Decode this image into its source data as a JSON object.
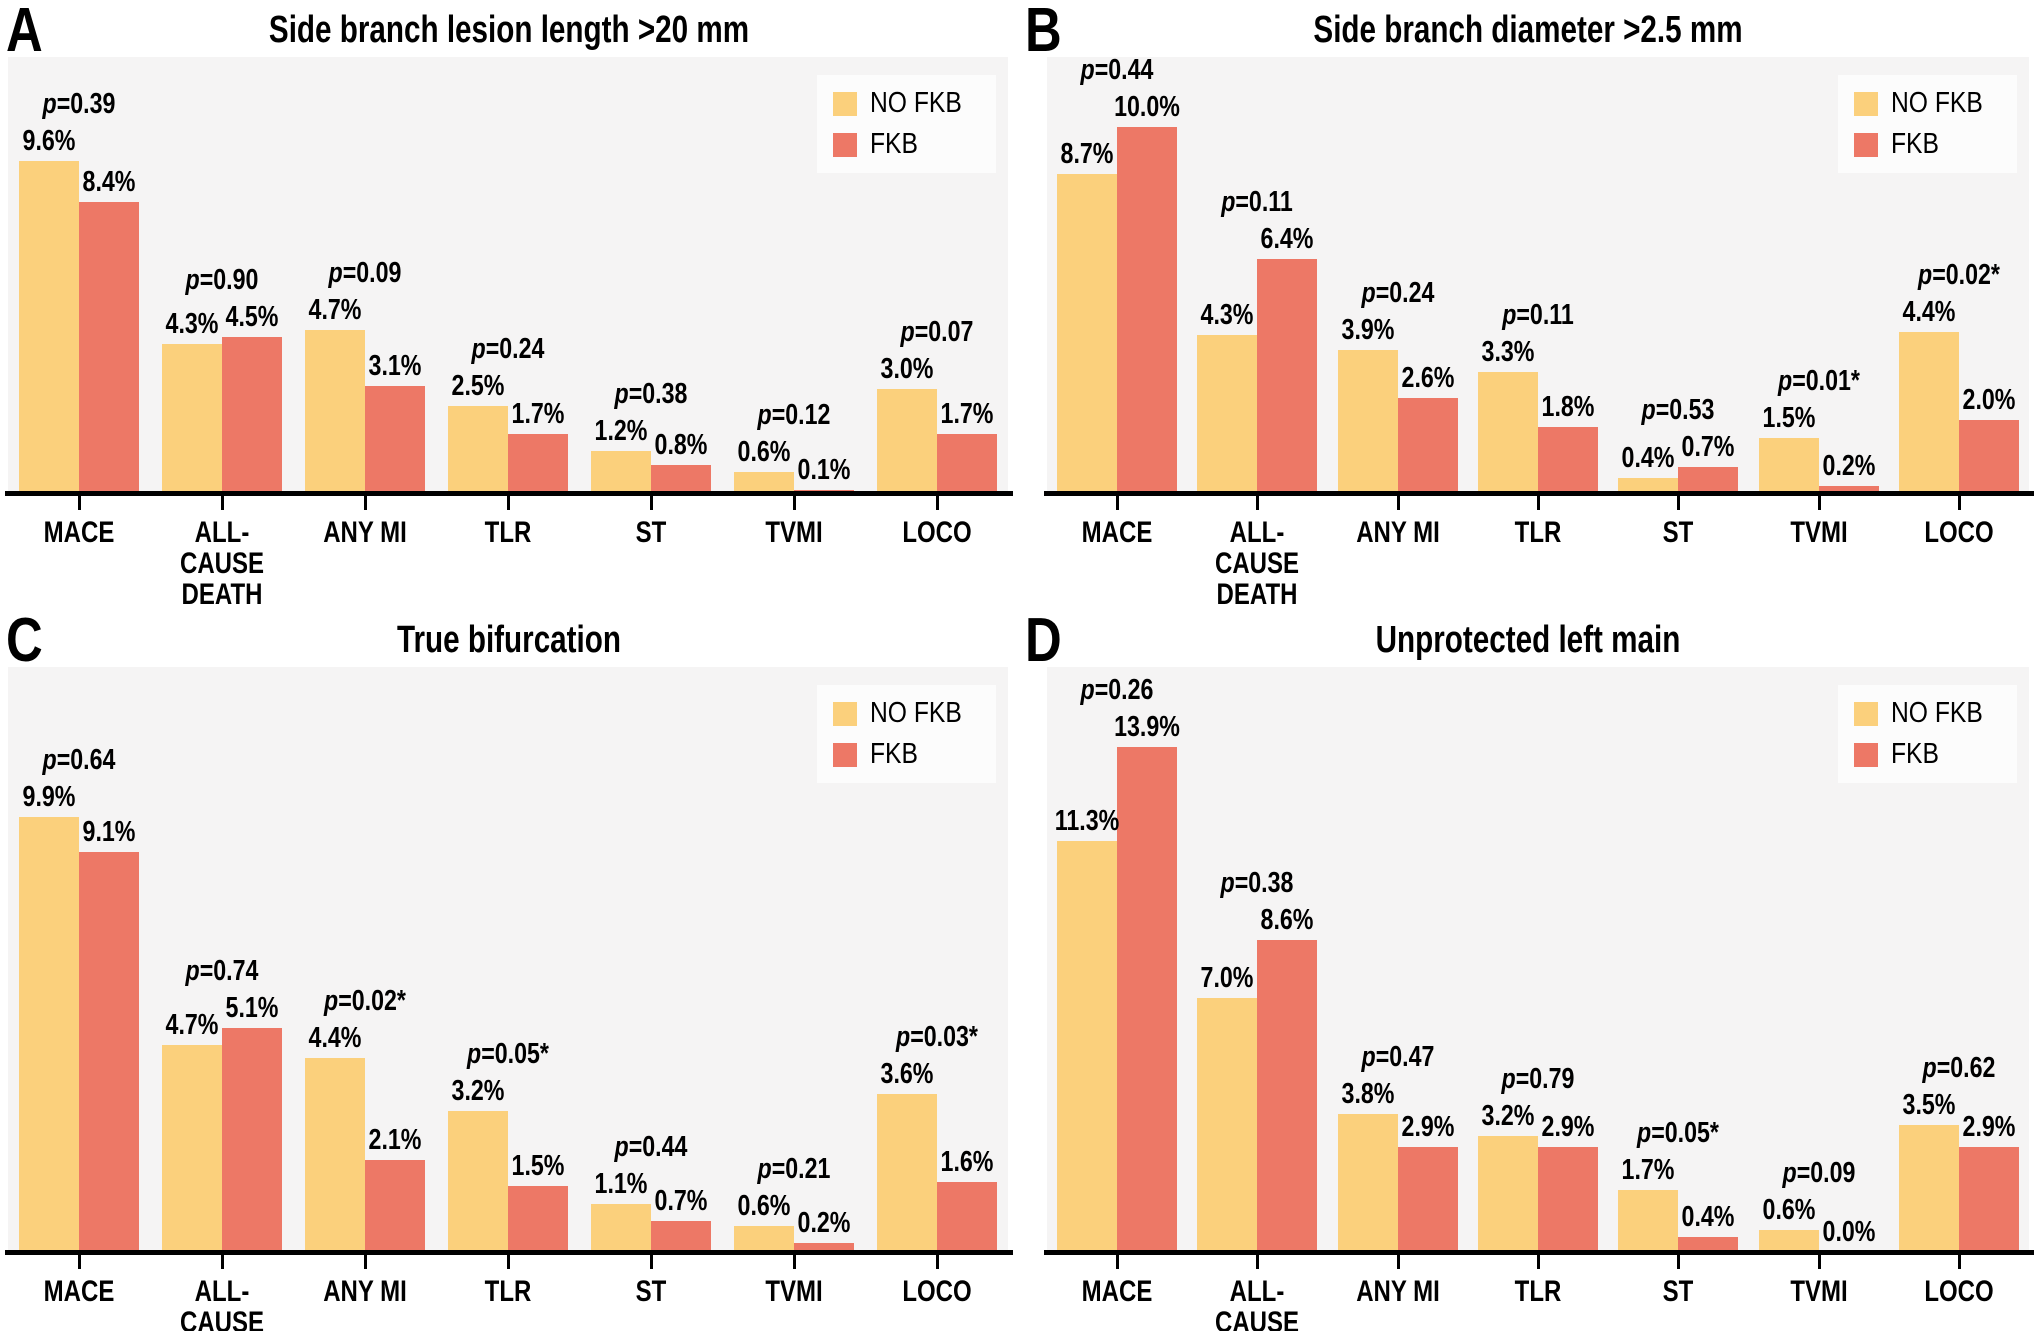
{
  "figure": {
    "legend": {
      "items": [
        {
          "label": "NO FKB",
          "color_key": "no_fkb"
        },
        {
          "label": "FKB",
          "color_key": "fkb"
        }
      ]
    }
  },
  "colors": {
    "no_fkb": "#FBD07C",
    "fkb": "#ED7866",
    "plot_bg": "#F5F4F4",
    "legend_bg": "#FCFCFC",
    "axis": "#000000",
    "text": "#000000",
    "page_bg": "#FFFFFF"
  },
  "chart_data": [
    {
      "panel": "A",
      "type": "bar",
      "title": "Side branch lesion length >20 mm",
      "categories": [
        "MACE",
        "ALL-CAUSE DEATH",
        "ANY MI",
        "TLR",
        "ST",
        "TVMI",
        "LOCO"
      ],
      "series": [
        {
          "name": "NO FKB",
          "values": [
            9.6,
            4.3,
            4.7,
            2.5,
            1.2,
            0.6,
            3.0
          ]
        },
        {
          "name": "FKB",
          "values": [
            8.4,
            4.5,
            3.1,
            1.7,
            0.8,
            0.1,
            1.7
          ]
        }
      ],
      "p_values": [
        "0.39",
        "0.90",
        "0.09",
        "0.24",
        "0.38",
        "0.12",
        "0.07"
      ],
      "value_suffix": "%",
      "ylim": [
        0,
        12.6
      ],
      "grid": false,
      "legend_position": "top-right"
    },
    {
      "panel": "B",
      "type": "bar",
      "title": "Side branch diameter >2.5 mm",
      "categories": [
        "MACE",
        "ALL-CAUSE DEATH",
        "ANY MI",
        "TLR",
        "ST",
        "TVMI",
        "LOCO"
      ],
      "series": [
        {
          "name": "NO FKB",
          "values": [
            8.7,
            4.3,
            3.9,
            3.3,
            0.4,
            1.5,
            4.4
          ]
        },
        {
          "name": "FKB",
          "values": [
            10.0,
            6.4,
            2.6,
            1.8,
            0.7,
            0.2,
            2.0
          ]
        }
      ],
      "p_values": [
        "0.44",
        "0.11",
        "0.24",
        "0.11",
        "0.53",
        "0.01*",
        "0.02*"
      ],
      "value_suffix": "%",
      "ylim": [
        0,
        11.9
      ],
      "grid": false,
      "legend_position": "top-right"
    },
    {
      "panel": "C",
      "type": "bar",
      "title": "True bifurcation",
      "categories": [
        "MACE",
        "ALL-CAUSE DEATH",
        "ANY MI",
        "TLR",
        "ST",
        "TVMI",
        "LOCO"
      ],
      "series": [
        {
          "name": "NO FKB",
          "values": [
            9.9,
            4.7,
            4.4,
            3.2,
            1.1,
            0.6,
            3.6
          ]
        },
        {
          "name": "FKB",
          "values": [
            9.1,
            5.1,
            2.1,
            1.5,
            0.7,
            0.2,
            1.6
          ]
        }
      ],
      "p_values": [
        "0.64",
        "0.74",
        "0.02*",
        "0.05*",
        "0.44",
        "0.21",
        "0.03*"
      ],
      "value_suffix": "%",
      "ylim": [
        0,
        13.3
      ],
      "grid": false,
      "legend_position": "top-right"
    },
    {
      "panel": "D",
      "type": "bar",
      "title": "Unprotected left main",
      "categories": [
        "MACE",
        "ALL-CAUSE DEATH",
        "ANY MI",
        "TLR",
        "ST",
        "TVMI",
        "LOCO"
      ],
      "series": [
        {
          "name": "NO FKB",
          "values": [
            11.3,
            7.0,
            3.8,
            3.2,
            1.7,
            0.6,
            3.5
          ]
        },
        {
          "name": "FKB",
          "values": [
            13.9,
            8.6,
            2.9,
            2.9,
            0.4,
            0.0,
            2.9
          ]
        }
      ],
      "p_values": [
        "0.26",
        "0.38",
        "0.47",
        "0.79",
        "0.05*",
        "0.09",
        "0.62"
      ],
      "value_suffix": "%",
      "ylim": [
        0,
        16.1
      ],
      "grid": false,
      "legend_position": "top-right"
    }
  ]
}
